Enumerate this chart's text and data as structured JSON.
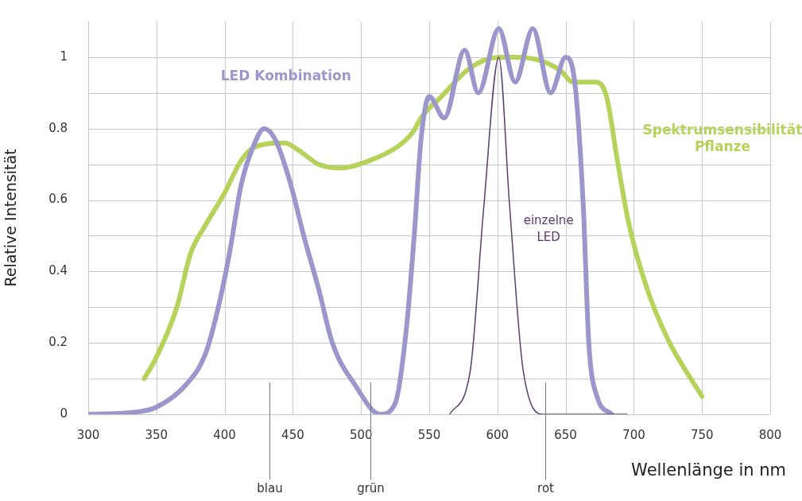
{
  "chart_data": {
    "type": "line",
    "xlabel": "Wellenlänge in nm",
    "ylabel": "Relative Intensität",
    "xlim": [
      300,
      800
    ],
    "xticks": [
      300,
      350,
      400,
      450,
      500,
      550,
      600,
      650,
      700,
      750,
      800
    ],
    "ylim": [
      0,
      1.1
    ],
    "yticks": [
      0,
      {
        "value": 0.1,
        "label": null
      },
      0.2,
      {
        "value": 0.3,
        "label": null
      },
      0.4,
      {
        "value": 0.5,
        "label": null
      },
      0.6,
      {
        "value": 0.7,
        "label": null
      },
      0.8,
      {
        "value": 0.9,
        "label": null
      },
      1
    ],
    "grid": true,
    "legend": false,
    "marker": "none",
    "line_style": "solid",
    "series": [
      {
        "name": "LED Kombination",
        "color": "#9b97cc",
        "x": [
          300,
          335,
          350,
          371,
          386,
          396,
          404,
          412,
          421,
          429,
          437,
          448,
          458,
          469,
          479,
          496,
          514,
          525,
          533,
          539,
          544,
          550,
          561,
          576,
          586,
          601,
          613,
          626,
          639,
          650,
          657,
          663,
          667,
          673,
          684
        ],
        "values": [
          0,
          0.006,
          0.02,
          0.08,
          0.17,
          0.31,
          0.46,
          0.64,
          0.75,
          0.8,
          0.77,
          0.65,
          0.5,
          0.35,
          0.2,
          0.08,
          0,
          0.03,
          0.23,
          0.5,
          0.77,
          0.89,
          0.83,
          1.02,
          0.9,
          1.08,
          0.93,
          1.08,
          0.9,
          1,
          0.92,
          0.58,
          0.2,
          0.05,
          0
        ]
      },
      {
        "name": "Spektrumsensibilität Pflanze",
        "color": "#b5d35a",
        "x": [
          341,
          350,
          365,
          375,
          386,
          400,
          412,
          423,
          444,
          454,
          469,
          485,
          506,
          527,
          538,
          544,
          559,
          580,
          601,
          613,
          632,
          647,
          655,
          672,
          680,
          688,
          696,
          709,
          725,
          750
        ],
        "values": [
          0.1,
          0.16,
          0.3,
          0.45,
          0.53,
          0.62,
          0.71,
          0.75,
          0.76,
          0.74,
          0.7,
          0.69,
          0.71,
          0.75,
          0.79,
          0.83,
          0.89,
          0.97,
          1,
          1,
          0.99,
          0.96,
          0.93,
          0.93,
          0.89,
          0.71,
          0.54,
          0.36,
          0.21,
          0.05
        ]
      },
      {
        "name": "einzelne LED",
        "color": "#5a3c6e",
        "x": [
          565,
          580,
          590,
          601,
          609,
          619,
          634,
          695
        ],
        "values": [
          0,
          0.12,
          0.58,
          1,
          0.58,
          0.12,
          0,
          0
        ]
      }
    ],
    "ref_lines": [
      {
        "axis": "x",
        "value": 433,
        "label": "blau"
      },
      {
        "axis": "x",
        "value": 507,
        "label": "grün"
      },
      {
        "axis": "x",
        "value": 635,
        "label": "rot"
      }
    ]
  }
}
